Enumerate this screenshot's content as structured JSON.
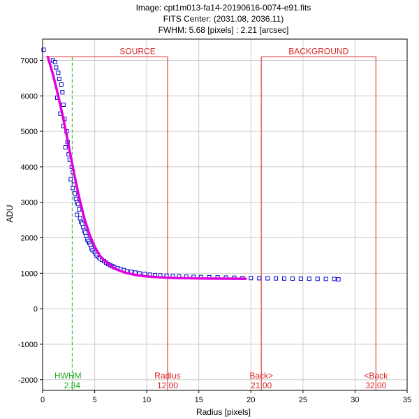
{
  "header": {
    "line1": "Image: cpt1m013-fa14-20190616-0074-e91.fits",
    "line2": "FITS Center: (2031.08,  2036.11)",
    "line3": "FWHM: 5.68 [pixels] : 2.21 [arcsec]"
  },
  "chart_data": {
    "type": "scatter",
    "xlabel": "Radius [pixels]",
    "ylabel": "ADU",
    "xlim": [
      0,
      35
    ],
    "ylim": [
      -2300,
      7600
    ],
    "xticks": [
      0,
      5,
      10,
      15,
      20,
      25,
      30,
      35
    ],
    "yticks": [
      -2000,
      -1000,
      0,
      1000,
      2000,
      3000,
      4000,
      5000,
      6000,
      7000
    ],
    "grid": true,
    "colors": {
      "points": "#0000cc",
      "fit": "#e000e0",
      "apertures": "#dd2222",
      "hwhm": "#22aa22",
      "grid": "#cccccc"
    },
    "series": [
      {
        "kind": "pixel-samples",
        "marker": "square",
        "points": [
          [
            0.1,
            7300
          ],
          [
            1.0,
            7000
          ],
          [
            1.2,
            6950
          ],
          [
            1.3,
            6800
          ],
          [
            1.5,
            6650
          ],
          [
            1.6,
            6480
          ],
          [
            1.8,
            6320
          ],
          [
            1.4,
            5950
          ],
          [
            1.9,
            6100
          ],
          [
            2.0,
            5750
          ],
          [
            1.7,
            5500
          ],
          [
            2.1,
            5350
          ],
          [
            2.0,
            5150
          ],
          [
            2.3,
            5000
          ],
          [
            2.4,
            4700
          ],
          [
            2.2,
            4550
          ],
          [
            2.5,
            4350
          ],
          [
            2.6,
            4200
          ],
          [
            2.8,
            4000
          ],
          [
            2.9,
            3850
          ],
          [
            2.7,
            3650
          ],
          [
            3.0,
            3500
          ],
          [
            2.9,
            3400
          ],
          [
            3.1,
            3250
          ],
          [
            3.2,
            3100
          ],
          [
            3.3,
            3000
          ],
          [
            3.4,
            2950
          ],
          [
            3.5,
            2800
          ],
          [
            3.3,
            2650
          ],
          [
            3.6,
            2550
          ],
          [
            3.7,
            2450
          ],
          [
            3.8,
            2400
          ],
          [
            3.9,
            2300
          ],
          [
            4.0,
            2200
          ],
          [
            4.1,
            2150
          ],
          [
            4.2,
            2050
          ],
          [
            4.3,
            1950
          ],
          [
            4.4,
            1900
          ],
          [
            4.5,
            1850
          ],
          [
            4.6,
            1800
          ],
          [
            4.7,
            1700
          ],
          [
            4.8,
            1650
          ],
          [
            5.0,
            1600
          ],
          [
            5.1,
            1550
          ],
          [
            5.2,
            1500
          ],
          [
            5.4,
            1450
          ],
          [
            5.5,
            1420
          ],
          [
            5.7,
            1380
          ],
          [
            5.9,
            1340
          ],
          [
            6.1,
            1300
          ],
          [
            6.3,
            1260
          ],
          [
            6.5,
            1230
          ],
          [
            6.7,
            1200
          ],
          [
            6.9,
            1170
          ],
          [
            7.2,
            1140
          ],
          [
            7.5,
            1110
          ],
          [
            7.8,
            1090
          ],
          [
            8.1,
            1060
          ],
          [
            8.5,
            1040
          ],
          [
            8.9,
            1020
          ],
          [
            9.3,
            1000
          ],
          [
            9.8,
            980
          ],
          [
            10.3,
            960
          ],
          [
            10.8,
            950
          ],
          [
            11.3,
            940
          ],
          [
            11.9,
            930
          ],
          [
            12.5,
            920
          ],
          [
            13.1,
            910
          ],
          [
            13.8,
            905
          ],
          [
            14.5,
            900
          ],
          [
            15.2,
            895
          ],
          [
            16.0,
            890
          ],
          [
            16.8,
            885
          ],
          [
            17.6,
            880
          ],
          [
            18.4,
            875
          ],
          [
            19.2,
            870
          ],
          [
            20.0,
            865
          ],
          [
            20.8,
            860
          ],
          [
            21.6,
            858
          ],
          [
            22.4,
            855
          ],
          [
            23.2,
            852
          ],
          [
            24.0,
            850
          ],
          [
            24.8,
            848
          ],
          [
            25.6,
            846
          ],
          [
            26.4,
            844
          ],
          [
            27.2,
            842
          ],
          [
            28.0,
            840
          ],
          [
            28.4,
            830
          ]
        ]
      },
      {
        "kind": "moffat-fit",
        "x": [
          0.5,
          1.0,
          1.5,
          2.0,
          2.5,
          3.0,
          3.5,
          4.0,
          4.5,
          5.0,
          5.5,
          6.0,
          7.0,
          8.0,
          9.0,
          10.0,
          11.0,
          12.0,
          13.0,
          14.0,
          15.0,
          16.0,
          17.0,
          18.0,
          19.0,
          19.5
        ],
        "y": [
          7100,
          6600,
          6000,
          5350,
          4600,
          3850,
          3150,
          2550,
          2100,
          1750,
          1500,
          1330,
          1120,
          1010,
          950,
          910,
          890,
          875,
          865,
          860,
          855,
          852,
          850,
          849,
          848,
          848
        ]
      }
    ],
    "apertures": {
      "source_label": "SOURCE",
      "background_label": "BACKGROUND",
      "radius_label": "Radius",
      "radius_value": "12.00",
      "radius": 12.0,
      "back_inner_label": "Back>",
      "back_inner_value": "21.00",
      "back_inner": 21.0,
      "back_outer_label": "<Back",
      "back_outer_value": "32.00",
      "back_outer": 32.0,
      "top_y": 7100
    },
    "hwhm": {
      "label": "HWHM",
      "value": "2.84",
      "x": 2.84
    }
  }
}
